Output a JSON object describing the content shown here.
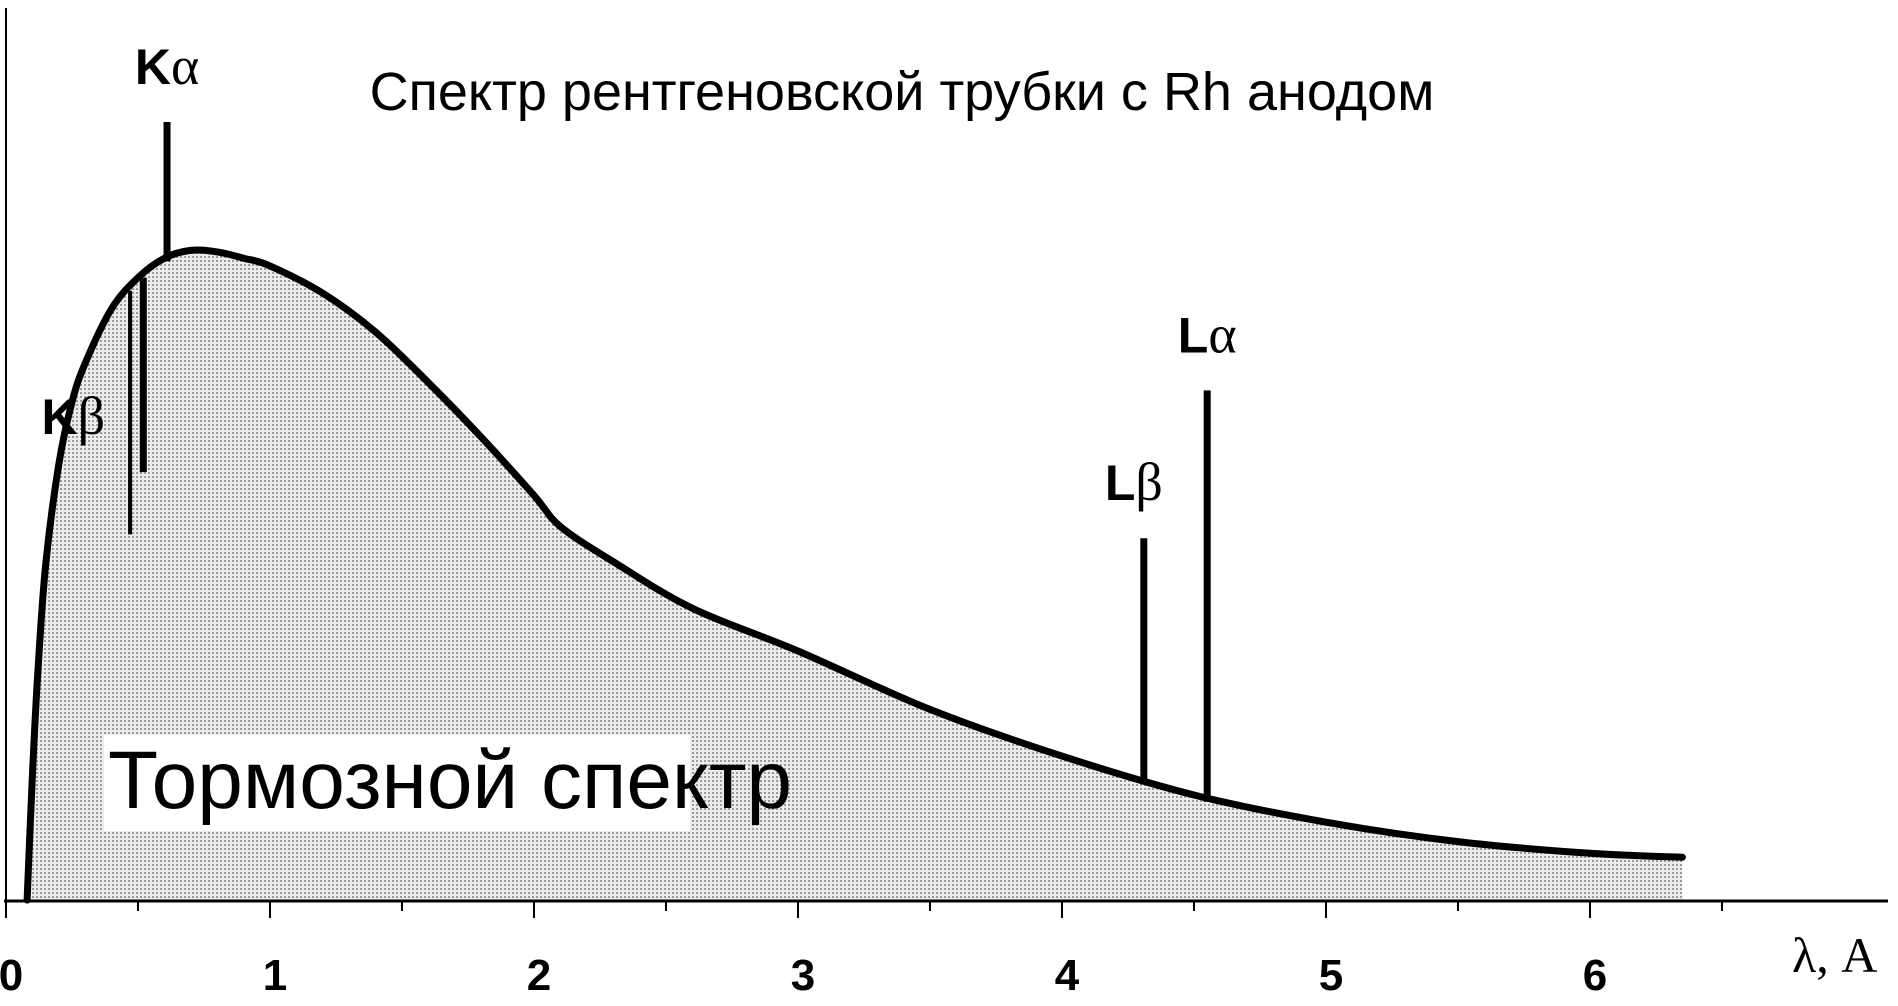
{
  "chart_data": {
    "type": "line",
    "title": "Спектр рентгеновской трубки с Rh анодом",
    "xlabel": "λ, A",
    "ylabel": "",
    "xlim": [
      0,
      6.5
    ],
    "ylim": [
      0,
      100
    ],
    "x_ticks": [
      0,
      1,
      2,
      3,
      4,
      5,
      6
    ],
    "x_tick_labels": [
      "0",
      "1",
      "2",
      "3",
      "4",
      "5",
      "6"
    ],
    "grid": false,
    "legend": "none",
    "colors": {
      "line": "#000000",
      "fill": "#d9d9d9",
      "background": "#ffffff"
    },
    "continuum": {
      "name": "Тормозной спектр",
      "x": [
        0.08,
        0.1,
        0.12,
        0.15,
        0.2,
        0.25,
        0.3,
        0.4,
        0.5,
        0.6,
        0.7,
        0.8,
        0.9,
        1.0,
        1.2,
        1.4,
        1.6,
        1.8,
        2.0,
        2.1,
        2.3,
        2.6,
        3.0,
        3.5,
        4.0,
        4.5,
        5.0,
        5.5,
        6.0,
        6.35
      ],
      "y": [
        0,
        16,
        29,
        43,
        56,
        64,
        69,
        76,
        80,
        82.5,
        83.5,
        83.3,
        82.5,
        81.5,
        78,
        73,
        66.5,
        59.5,
        52,
        48,
        43.5,
        37.5,
        32,
        24.5,
        18.5,
        13.5,
        10,
        7.5,
        6,
        5.5
      ]
    },
    "lines": [
      {
        "name": "Kβ",
        "letter": "K",
        "greek": "β",
        "x": 0.47,
        "y": 47,
        "labeled": false
      },
      {
        "name": "Kβ",
        "letter": "K",
        "greek": "β",
        "x": 0.52,
        "y": 55,
        "labeled": true
      },
      {
        "name": "Kα",
        "letter": "K",
        "greek": "α",
        "x": 0.61,
        "y": 100,
        "labeled": true
      },
      {
        "name": "Lβ",
        "letter": "L",
        "greek": "β",
        "x": 4.31,
        "y": 46.5,
        "labeled": true
      },
      {
        "name": "Lα",
        "letter": "L",
        "greek": "α",
        "x": 4.55,
        "y": 65.5,
        "labeled": true
      }
    ]
  }
}
